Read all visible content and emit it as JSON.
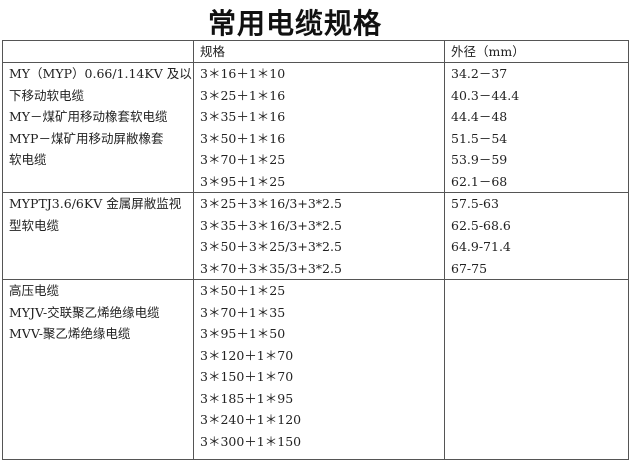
{
  "title": "常用电缆规格",
  "table": {
    "headers": [
      "",
      "规格",
      "外径（mm）"
    ],
    "groups": [
      {
        "description": [
          "MY（MYP）0.66/1.14KV 及以",
          "下移动软电缆",
          "MY－煤矿用移动橡套软电缆",
          "MYP－煤矿用移动屏敝橡套",
          "软电缆"
        ],
        "specs": [
          "3＊16＋1＊10",
          "3＊25＋1＊16",
          "3＊35＋1＊16",
          "3＊50＋1＊16",
          "3＊70＋1＊25",
          "3＊95＋1＊25"
        ],
        "diameters": [
          "34.2－37",
          "40.3－44.4",
          "44.4－48",
          "51.5－54",
          "53.9－59",
          "62.1－68"
        ]
      },
      {
        "description": [
          "MYPTJ3.6/6KV 金属屏敝监视",
          "型软电缆"
        ],
        "specs": [
          "3＊25＋3＊16/3+3*2.5",
          "3＊35＋3＊16/3+3*2.5",
          "3＊50＋3＊25/3+3*2.5",
          "3＊70＋3＊35/3+3*2.5"
        ],
        "diameters": [
          "57.5-63",
          "62.5-68.6",
          "64.9-71.4",
          "67-75"
        ]
      },
      {
        "description": [
          "高压电缆",
          "MYJV-交联聚乙烯绝缘电缆",
          "MVV-聚乙烯绝缘电缆"
        ],
        "specs": [
          "3＊50＋1＊25",
          "3＊70＋1＊35",
          "3＊95＋1＊50",
          "3＊120＋1＊70",
          "3＊150＋1＊70",
          "3＊185＋1＊95",
          "3＊240＋1＊120",
          "3＊300＋1＊150"
        ],
        "diameters": []
      }
    ]
  }
}
